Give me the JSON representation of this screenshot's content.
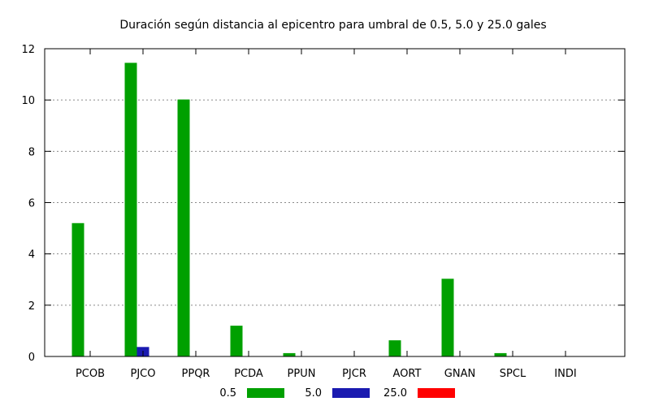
{
  "chart_data": {
    "type": "bar",
    "title": "Duración según distancia al epicentro para umbral de 0.5, 5.0 y 25.0 gales",
    "xlabel": "",
    "ylabel": "",
    "ylim": [
      0,
      12
    ],
    "yticks": [
      "0",
      "2",
      "4",
      "6",
      "8",
      "10",
      "12"
    ],
    "grid": true,
    "legend_position": "bottom",
    "categories": [
      "PCOB",
      "PJCO",
      "PPQR",
      "PCDA",
      "PPUN",
      "PJCR",
      "AORT",
      "GNAN",
      "SPCL",
      "INDI"
    ],
    "series": [
      {
        "name": "0.5",
        "color": "#00a000",
        "values": [
          5.2,
          11.45,
          10.02,
          1.2,
          0.13,
          0,
          0.63,
          3.03,
          0.13,
          0
        ]
      },
      {
        "name": "5.0",
        "color": "#1a1ab0",
        "values": [
          0,
          0.37,
          0,
          0,
          0,
          0,
          0,
          0,
          0,
          0
        ]
      },
      {
        "name": "25.0",
        "color": "#ff0000",
        "values": [
          0,
          0,
          0,
          0,
          0,
          0,
          0,
          0,
          0,
          0
        ]
      }
    ]
  }
}
